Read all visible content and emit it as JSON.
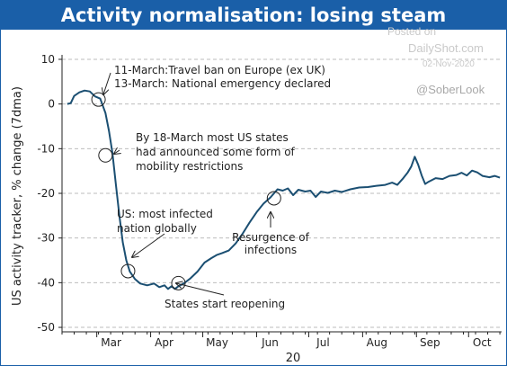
{
  "chart_data": {
    "type": "line",
    "title": "Activity normalisation: losing steam",
    "ylabel": "US activity tracker, % change (7dma)",
    "xlabel": "20",
    "ylim": [
      -51,
      11
    ],
    "xlim": [
      "2020-02-10",
      "2020-10-20"
    ],
    "yticks": [
      10,
      0,
      -10,
      -20,
      -30,
      -40,
      -50
    ],
    "xticks": [
      {
        "label": "Mar",
        "date": "2020-03-01"
      },
      {
        "label": "Apr",
        "date": "2020-04-01"
      },
      {
        "label": "May",
        "date": "2020-05-01"
      },
      {
        "label": "Jun",
        "date": "2020-06-01"
      },
      {
        "label": "Jul",
        "date": "2020-07-01"
      },
      {
        "label": "Aug",
        "date": "2020-08-01"
      },
      {
        "label": "Sep",
        "date": "2020-09-01"
      },
      {
        "label": "Oct",
        "date": "2020-10-01"
      }
    ],
    "grid": "horizontal dashed",
    "line_color": "#1b4f72",
    "series": [
      {
        "points": [
          [
            "2020-02-13",
            0
          ],
          [
            "2020-02-15",
            0.2
          ],
          [
            "2020-02-17",
            1.8
          ],
          [
            "2020-02-20",
            2.6
          ],
          [
            "2020-02-23",
            3.0
          ],
          [
            "2020-02-26",
            2.8
          ],
          [
            "2020-02-29",
            1.7
          ],
          [
            "2020-03-03",
            1.2
          ],
          [
            "2020-03-06",
            -2
          ],
          [
            "2020-03-08",
            -6
          ],
          [
            "2020-03-10",
            -11
          ],
          [
            "2020-03-12",
            -18
          ],
          [
            "2020-03-14",
            -25
          ],
          [
            "2020-03-16",
            -31
          ],
          [
            "2020-03-18",
            -35
          ],
          [
            "2020-03-20",
            -37.5
          ],
          [
            "2020-03-23",
            -39.2
          ],
          [
            "2020-03-26",
            -40.2
          ],
          [
            "2020-03-30",
            -40.6
          ],
          [
            "2020-04-03",
            -40.2
          ],
          [
            "2020-04-06",
            -41.0
          ],
          [
            "2020-04-09",
            -40.6
          ],
          [
            "2020-04-11",
            -41.4
          ],
          [
            "2020-04-13",
            -40.8
          ],
          [
            "2020-04-15",
            -41.4
          ],
          [
            "2020-04-17",
            -40.8
          ],
          [
            "2020-04-20",
            -40.2
          ],
          [
            "2020-04-24",
            -39.0
          ],
          [
            "2020-04-28",
            -37.5
          ],
          [
            "2020-05-02",
            -35.5
          ],
          [
            "2020-05-06",
            -34.5
          ],
          [
            "2020-05-09",
            -33.8
          ],
          [
            "2020-05-12",
            -33.4
          ],
          [
            "2020-05-16",
            -32.8
          ],
          [
            "2020-05-20",
            -31.2
          ],
          [
            "2020-05-24",
            -29.0
          ],
          [
            "2020-05-28",
            -26.5
          ],
          [
            "2020-06-01",
            -24.2
          ],
          [
            "2020-06-05",
            -22.3
          ],
          [
            "2020-06-09",
            -20.9
          ],
          [
            "2020-06-11",
            -20.0
          ],
          [
            "2020-06-13",
            -19.1
          ],
          [
            "2020-06-16",
            -19.4
          ],
          [
            "2020-06-19",
            -18.9
          ],
          [
            "2020-06-22",
            -20.4
          ],
          [
            "2020-06-25",
            -19.2
          ],
          [
            "2020-06-29",
            -19.6
          ],
          [
            "2020-07-02",
            -19.4
          ],
          [
            "2020-07-05",
            -20.8
          ],
          [
            "2020-07-08",
            -19.6
          ],
          [
            "2020-07-12",
            -19.9
          ],
          [
            "2020-07-16",
            -19.4
          ],
          [
            "2020-07-20",
            -19.7
          ],
          [
            "2020-07-25",
            -19.1
          ],
          [
            "2020-07-30",
            -18.7
          ],
          [
            "2020-08-04",
            -18.6
          ],
          [
            "2020-08-09",
            -18.3
          ],
          [
            "2020-08-14",
            -18.1
          ],
          [
            "2020-08-18",
            -17.6
          ],
          [
            "2020-08-21",
            -18.1
          ],
          [
            "2020-08-24",
            -16.8
          ],
          [
            "2020-08-27",
            -15.3
          ],
          [
            "2020-08-29",
            -14.0
          ],
          [
            "2020-08-31",
            -11.8
          ],
          [
            "2020-09-02",
            -13.6
          ],
          [
            "2020-09-04",
            -16.0
          ],
          [
            "2020-09-06",
            -17.9
          ],
          [
            "2020-09-08",
            -17.4
          ],
          [
            "2020-09-12",
            -16.6
          ],
          [
            "2020-09-16",
            -16.8
          ],
          [
            "2020-09-20",
            -16.1
          ],
          [
            "2020-09-24",
            -15.9
          ],
          [
            "2020-09-27",
            -15.4
          ],
          [
            "2020-09-30",
            -16.0
          ],
          [
            "2020-10-03",
            -14.9
          ],
          [
            "2020-10-06",
            -15.3
          ],
          [
            "2020-10-09",
            -16.1
          ],
          [
            "2020-10-13",
            -16.4
          ],
          [
            "2020-10-16",
            -16.1
          ],
          [
            "2020-10-19",
            -16.5
          ]
        ]
      }
    ],
    "markers": [
      {
        "date": "2020-03-02",
        "y": 1.0
      },
      {
        "date": "2020-03-06",
        "y": -11.5
      },
      {
        "date": "2020-03-19",
        "y": -37.4
      },
      {
        "date": "2020-04-17",
        "y": -40.1
      },
      {
        "date": "2020-06-11",
        "y": -21.1
      }
    ],
    "annotations": [
      {
        "lines": [
          "11-March:Travel ban on Europe (ex UK)",
          "13-March: National emergency declared"
        ]
      },
      {
        "lines": [
          "By 18-March most US states",
          "had announced some form of",
          "mobility restrictions"
        ]
      },
      {
        "lines": [
          "US: most infected",
          "nation globally"
        ]
      },
      {
        "lines": [
          "Resurgence of",
          "infections"
        ]
      },
      {
        "lines": [
          "States start reopening"
        ]
      }
    ]
  },
  "watermark": {
    "posted_on": "Posted on",
    "site": "DailyShot.com",
    "date": "02-Nov-2020",
    "handle": "@SoberLook"
  }
}
